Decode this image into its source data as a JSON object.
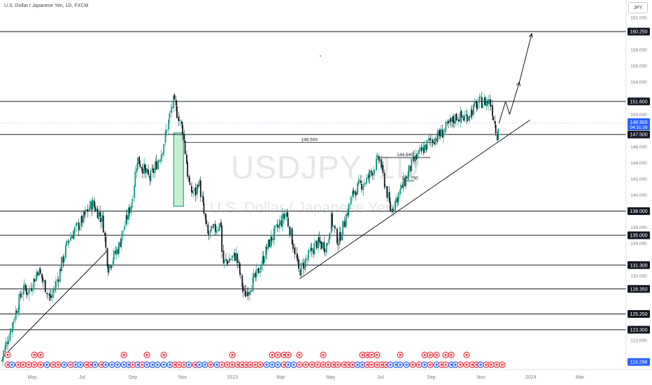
{
  "chart_data": {
    "type": "candlestick",
    "title": "U.S. Dollar / Japanese Yen, 1D, FXCM",
    "watermark_symbol": "USDJPY, 1D",
    "watermark_name": "U.S. Dollar / Japanese Yen",
    "currency": "JPY",
    "y_axis": {
      "ticks": [
        "162.000",
        "160.000",
        "158.000",
        "156.000",
        "154.000",
        "152.000",
        "150.000",
        "148.000",
        "146.000",
        "144.000",
        "142.000",
        "140.000",
        "138.000",
        "136.000",
        "134.000",
        "132.000",
        "130.000",
        "128.000",
        "126.000",
        "124.000",
        "122.000",
        "120.000"
      ],
      "ylim": [
        118.8,
        163.2
      ]
    },
    "x_axis": {
      "ticks": [
        "May",
        "Jul",
        "Sep",
        "Nov",
        "2023",
        "Mar",
        "May",
        "Jul",
        "Sep",
        "Nov",
        "2024",
        "Mar"
      ]
    },
    "levels": [
      "160.250",
      "151.600",
      "147.500",
      "138.000",
      "135.000",
      "131.300",
      "128.350",
      "125.250",
      "123.300"
    ],
    "current_price": {
      "value": "148.900",
      "countdown": "04:31:39"
    },
    "low_badge": "119.298",
    "annotations": [
      {
        "text": "146.500",
        "price": 146.5
      },
      {
        "text": "144.640",
        "price": 144.64
      },
      {
        "text": "141.750",
        "price": 141.75
      }
    ],
    "price_path": [
      {
        "date": "2022-03-25",
        "price": 119.5
      },
      {
        "date": "2022-04-01",
        "price": 122.0
      },
      {
        "date": "2022-04-20",
        "price": 128.4
      },
      {
        "date": "2022-04-27",
        "price": 128.0
      },
      {
        "date": "2022-05-09",
        "price": 130.8
      },
      {
        "date": "2022-05-24",
        "price": 127.0
      },
      {
        "date": "2022-06-02",
        "price": 129.8
      },
      {
        "date": "2022-06-15",
        "price": 134.5
      },
      {
        "date": "2022-06-29",
        "price": 136.5
      },
      {
        "date": "2022-07-14",
        "price": 139.0
      },
      {
        "date": "2022-07-27",
        "price": 136.8
      },
      {
        "date": "2022-08-02",
        "price": 131.0
      },
      {
        "date": "2022-08-15",
        "price": 133.5
      },
      {
        "date": "2022-09-01",
        "price": 139.5
      },
      {
        "date": "2022-09-07",
        "price": 144.5
      },
      {
        "date": "2022-09-22",
        "price": 142.0
      },
      {
        "date": "2022-10-06",
        "price": 145.0
      },
      {
        "date": "2022-10-21",
        "price": 151.6
      },
      {
        "date": "2022-11-02",
        "price": 148.0
      },
      {
        "date": "2022-11-10",
        "price": 140.5
      },
      {
        "date": "2022-11-18",
        "price": 140.3
      },
      {
        "date": "2022-11-21",
        "price": 142.0
      },
      {
        "date": "2022-12-02",
        "price": 135.0
      },
      {
        "date": "2022-12-19",
        "price": 136.5
      },
      {
        "date": "2022-12-20",
        "price": 131.5
      },
      {
        "date": "2023-01-06",
        "price": 132.5
      },
      {
        "date": "2023-01-16",
        "price": 127.5
      },
      {
        "date": "2023-01-31",
        "price": 130.0
      },
      {
        "date": "2023-02-15",
        "price": 134.0
      },
      {
        "date": "2023-03-08",
        "price": 137.8
      },
      {
        "date": "2023-03-24",
        "price": 130.5
      },
      {
        "date": "2023-04-14",
        "price": 134.0
      },
      {
        "date": "2023-04-27",
        "price": 133.7
      },
      {
        "date": "2023-05-02",
        "price": 137.0
      },
      {
        "date": "2023-05-11",
        "price": 134.2
      },
      {
        "date": "2023-05-30",
        "price": 140.5
      },
      {
        "date": "2023-06-16",
        "price": 142.0
      },
      {
        "date": "2023-06-30",
        "price": 144.6
      },
      {
        "date": "2023-07-14",
        "price": 138.0
      },
      {
        "date": "2023-07-28",
        "price": 141.0
      },
      {
        "date": "2023-08-10",
        "price": 144.0
      },
      {
        "date": "2023-08-29",
        "price": 146.5
      },
      {
        "date": "2023-09-14",
        "price": 147.6
      },
      {
        "date": "2023-10-03",
        "price": 149.8
      },
      {
        "date": "2023-10-12",
        "price": 149.5
      },
      {
        "date": "2023-10-31",
        "price": 151.5
      },
      {
        "date": "2023-11-13",
        "price": 151.6
      },
      {
        "date": "2023-11-21",
        "price": 147.5
      },
      {
        "date": "2023-11-23",
        "price": 148.9
      }
    ],
    "projection": [
      {
        "date": "2023-11-23",
        "price": 148.9
      },
      {
        "date": "2023-12-01",
        "price": 151.6
      },
      {
        "date": "2023-12-06",
        "price": 150.0
      },
      {
        "date": "2023-12-18",
        "price": 154.0
      },
      {
        "date": "2024-01-02",
        "price": 160.0
      }
    ],
    "trendlines": [
      [
        {
          "date": "2022-03-25",
          "price": 119.8
        },
        {
          "date": "2022-07-31",
          "price": 133.0
        }
      ],
      [
        {
          "date": "2023-03-24",
          "price": 129.6
        },
        {
          "date": "2023-12-31",
          "price": 149.3
        }
      ]
    ],
    "highlight_box": {
      "start": "2022-10-21",
      "end": "2022-11-02",
      "low": 138.6,
      "high": 147.7
    },
    "colors": {
      "up": "#089981",
      "down": "#131722",
      "level_line": "#131722",
      "current_price_badge": "#2962ff",
      "low_badge": "#2962ff",
      "highlight_fill": "#b2ebc0",
      "highlight_stroke": "#089981",
      "event_red": "#f23645",
      "event_blue": "#2962ff"
    },
    "grid": false
  }
}
